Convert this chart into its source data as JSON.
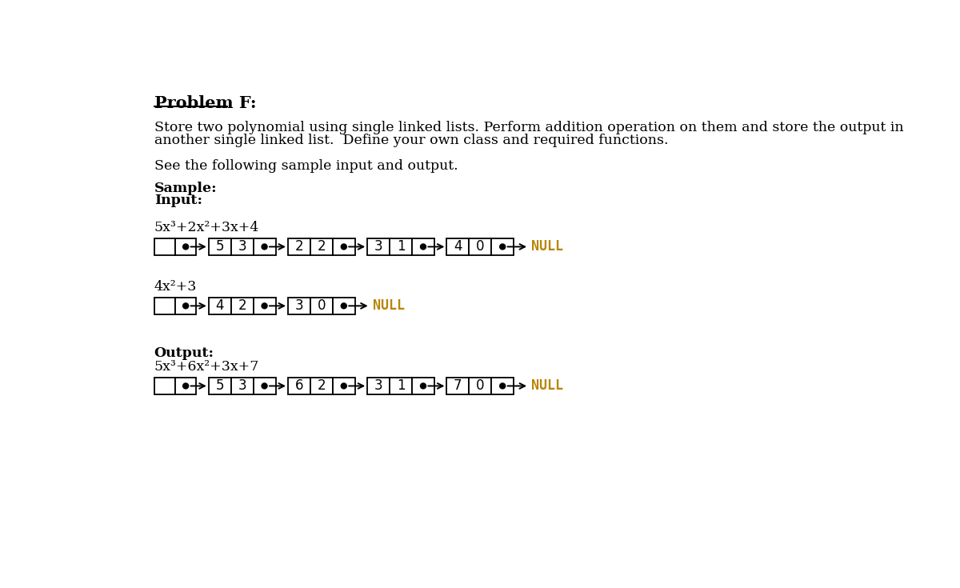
{
  "title": "Problem F:",
  "bg_color": "#ffffff",
  "text_color": "#000000",
  "description_line1": "Store two polynomial using single linked lists. Perform addition operation on them and store the output in",
  "description_line2": "another single linked list.  Define your own class and required functions.",
  "sample_see": "See the following sample input and output.",
  "label_sample": "Sample:",
  "label_input": "Input:",
  "label_output": "Output:",
  "poly1_label": "5x³+2x²+3x+4",
  "poly2_label": "4x²+3",
  "output_poly_label": "5x³+6x²+3x+7",
  "linked_list_1": [
    {
      "coeff": "5",
      "exp": "3"
    },
    {
      "coeff": "2",
      "exp": "2"
    },
    {
      "coeff": "3",
      "exp": "1"
    },
    {
      "coeff": "4",
      "exp": "0"
    }
  ],
  "linked_list_2": [
    {
      "coeff": "4",
      "exp": "2"
    },
    {
      "coeff": "3",
      "exp": "0"
    }
  ],
  "linked_list_out": [
    {
      "coeff": "5",
      "exp": "3"
    },
    {
      "coeff": "6",
      "exp": "2"
    },
    {
      "coeff": "3",
      "exp": "1"
    },
    {
      "coeff": "7",
      "exp": "0"
    }
  ],
  "null_color": "#b8860b",
  "font_size_title": 15,
  "font_size_body": 12.5,
  "font_size_bold": 12.5,
  "font_size_node": 12,
  "font_size_poly": 12.5,
  "font_size_null": 12
}
